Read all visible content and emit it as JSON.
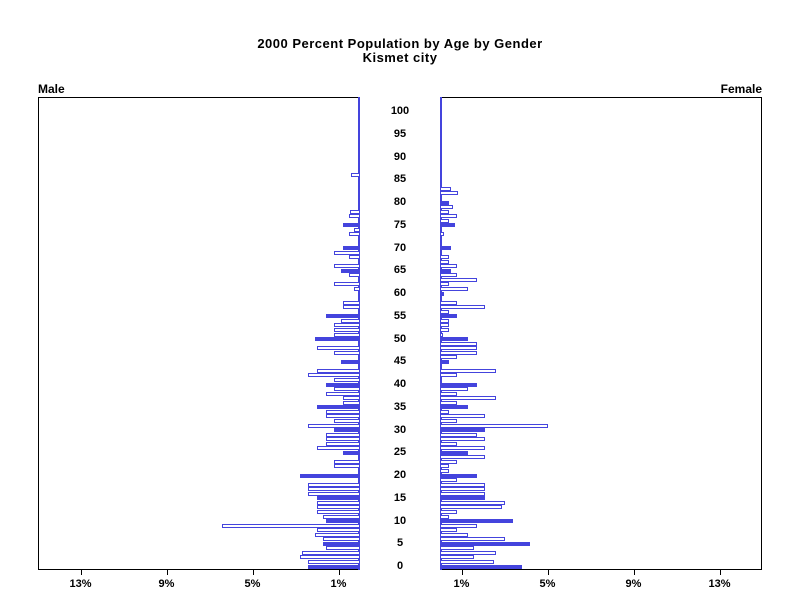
{
  "title": {
    "line1": "2000 Percent Population by Age by Gender",
    "line2": "Kismet city"
  },
  "axis": {
    "male_label": "Male",
    "female_label": "Female",
    "x_tick_values": [
      1,
      5,
      9,
      13
    ],
    "x_tick_labels": [
      "1%",
      "5%",
      "9%",
      "13%"
    ],
    "x_max_percent": 15,
    "age_tick_step": 5,
    "age_ticks": [
      0,
      5,
      10,
      15,
      20,
      25,
      30,
      35,
      40,
      45,
      50,
      55,
      60,
      65,
      70,
      75,
      80,
      85,
      90,
      95,
      100
    ]
  },
  "colors": {
    "bar_blue": "#4444DD",
    "bar_white": "#FFFFFF",
    "axis_black": "#000000"
  },
  "chart_data": {
    "type": "bar",
    "subtype": "population-pyramid",
    "title": "2000 Percent Population by Age by Gender — Kismet city",
    "xlabel": "Percent of population",
    "ylabel": "Age (single years, 0-100)",
    "highlight_every": 5,
    "ages": [
      0,
      1,
      2,
      3,
      4,
      5,
      6,
      7,
      8,
      9,
      10,
      11,
      12,
      13,
      14,
      15,
      16,
      17,
      18,
      19,
      20,
      21,
      22,
      23,
      24,
      25,
      26,
      27,
      28,
      29,
      30,
      31,
      32,
      33,
      34,
      35,
      36,
      37,
      38,
      39,
      40,
      41,
      42,
      43,
      44,
      45,
      46,
      47,
      48,
      49,
      50,
      51,
      52,
      53,
      54,
      55,
      56,
      57,
      58,
      59,
      60,
      61,
      62,
      63,
      64,
      65,
      66,
      67,
      68,
      69,
      70,
      71,
      72,
      73,
      74,
      75,
      76,
      77,
      78,
      79,
      80,
      81,
      82,
      83,
      84,
      85,
      86,
      87,
      88,
      89,
      90,
      91,
      92,
      93,
      94,
      95,
      96,
      97,
      98,
      99,
      100
    ],
    "male_pct": [
      2.4,
      2.4,
      2.8,
      2.7,
      1.6,
      1.7,
      1.7,
      2.1,
      2.0,
      6.4,
      1.6,
      1.7,
      2.0,
      2.0,
      2.0,
      2.0,
      2.4,
      2.4,
      2.4,
      0,
      2.8,
      0,
      1.2,
      1.2,
      0,
      0.8,
      2.0,
      1.6,
      1.6,
      1.6,
      1.2,
      2.4,
      1.2,
      1.6,
      1.6,
      2.0,
      0.8,
      0.8,
      1.6,
      1.2,
      1.6,
      1.2,
      2.4,
      2.0,
      0,
      0.9,
      0,
      1.2,
      2.0,
      0,
      2.1,
      1.2,
      1.2,
      1.2,
      0.9,
      1.6,
      0,
      0.8,
      0.8,
      0,
      0,
      0.3,
      1.2,
      0,
      0.5,
      0.9,
      1.2,
      0,
      0.5,
      1.2,
      0.8,
      0,
      0,
      0.5,
      0.3,
      0.8,
      0,
      0.5,
      0.45,
      0,
      0,
      0,
      0,
      0,
      0,
      0,
      0.4,
      0,
      0,
      0,
      0,
      0,
      0,
      0,
      0,
      0,
      0,
      0,
      0,
      0,
      0
    ],
    "female_pct": [
      3.8,
      2.5,
      1.6,
      2.6,
      1.6,
      4.2,
      3.0,
      1.3,
      0.8,
      1.7,
      3.4,
      0.4,
      0.8,
      2.9,
      3.0,
      2.1,
      2.1,
      2.1,
      2.1,
      0.8,
      1.7,
      0.4,
      0.4,
      0.8,
      2.1,
      1.3,
      2.1,
      0.8,
      2.1,
      1.7,
      2.1,
      5.0,
      0.8,
      2.1,
      0.4,
      1.3,
      0.8,
      2.6,
      0.8,
      1.3,
      1.7,
      0,
      0.8,
      2.6,
      0,
      0.4,
      0.8,
      1.7,
      1.7,
      1.7,
      1.3,
      0.15,
      0.4,
      0.4,
      0.4,
      0.8,
      0.4,
      2.1,
      0.8,
      0,
      0.2,
      1.3,
      0.4,
      1.7,
      0.8,
      0.5,
      0.8,
      0.4,
      0.4,
      0,
      0.5,
      0,
      0,
      0.2,
      0,
      0.7,
      0.4,
      0.8,
      0.4,
      0.6,
      0.4,
      0,
      0.85,
      0.5,
      0,
      0,
      0,
      0,
      0,
      0,
      0,
      0,
      0,
      0,
      0,
      0,
      0,
      0,
      0,
      0,
      0
    ]
  }
}
